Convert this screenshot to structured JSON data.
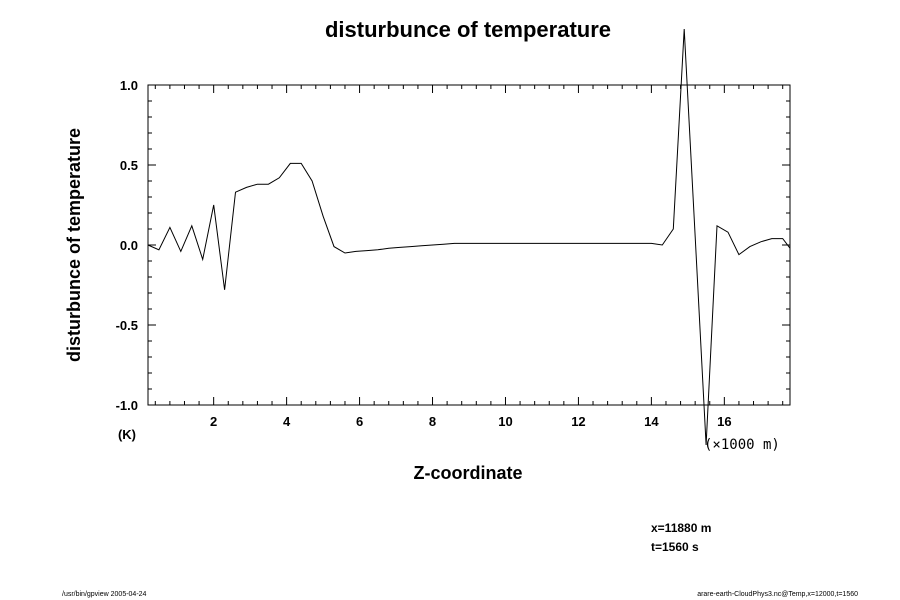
{
  "chart_data": {
    "type": "line",
    "title": "disturbunce of temperature",
    "xlabel": "Z-coordinate",
    "ylabel": "disturbunce of temperature",
    "y_unit": "(K)",
    "x_scale_note": "(×1000 m)",
    "xlim": [
      0.2,
      17.8
    ],
    "ylim": [
      -1.0,
      1.0
    ],
    "x_ticks": [
      2,
      4,
      6,
      8,
      10,
      12,
      14,
      16
    ],
    "x_tick_labels": [
      "2",
      "4",
      "6",
      "8",
      "10",
      "12",
      "14",
      "16"
    ],
    "y_ticks": [
      1.0,
      0.5,
      0.0,
      -0.5,
      -1.0
    ],
    "y_tick_labels": [
      "1.0",
      "0.5",
      "0.0",
      "-0.5",
      "-1.0"
    ],
    "grid": false,
    "series": [
      {
        "x": [
          0.2,
          0.5,
          0.8,
          1.1,
          1.4,
          1.7,
          2.0,
          2.3,
          2.6,
          2.9,
          3.2,
          3.5,
          3.8,
          4.1,
          4.4,
          4.7,
          5.0,
          5.3,
          5.6,
          5.9,
          6.2,
          6.5,
          6.8,
          7.1,
          7.4,
          7.7,
          8.0,
          8.3,
          8.6,
          9.0,
          10.0,
          11.0,
          12.0,
          13.0,
          14.0,
          14.3,
          14.6,
          14.9,
          15.2,
          15.5,
          15.8,
          16.1,
          16.4,
          16.7,
          17.0,
          17.3,
          17.6,
          17.8
        ],
        "values": [
          0.0,
          -0.03,
          0.11,
          -0.04,
          0.12,
          -0.09,
          0.25,
          -0.28,
          0.33,
          0.36,
          0.38,
          0.38,
          0.42,
          0.51,
          0.51,
          0.4,
          0.18,
          -0.01,
          -0.05,
          -0.04,
          -0.035,
          -0.03,
          -0.02,
          -0.015,
          -0.01,
          -0.005,
          0.0,
          0.005,
          0.01,
          0.01,
          0.01,
          0.01,
          0.01,
          0.01,
          0.01,
          0.0,
          0.1,
          1.35,
          0.05,
          -1.25,
          0.12,
          0.08,
          -0.06,
          -0.01,
          0.02,
          0.04,
          0.04,
          -0.02
        ]
      }
    ]
  },
  "annotations": {
    "x_position": "x=11880 m",
    "t_value": "t=1560 s"
  },
  "footer": {
    "left": "/usr/bin/gpview 2005-04-24",
    "right": "arare-earth-CloudPhys3.nc@Temp,x=12000,t=1560"
  }
}
